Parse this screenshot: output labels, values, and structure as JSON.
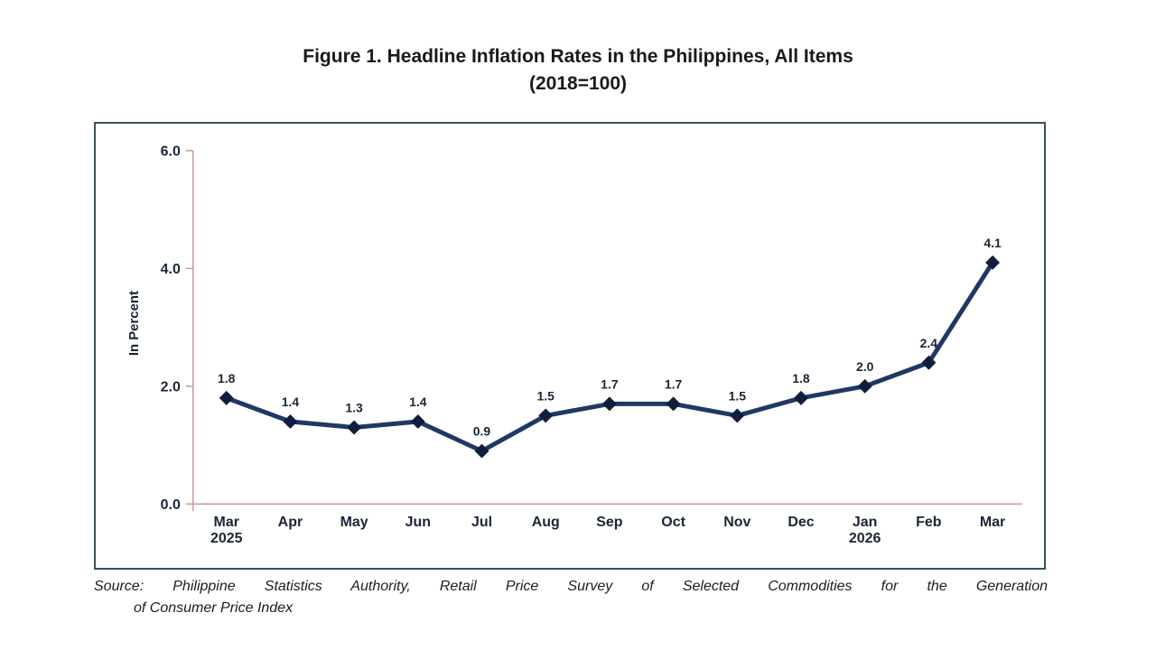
{
  "chart_data": {
    "type": "line",
    "title": "Figure 1. Headline Inflation Rates in the Philippines, All Items",
    "subtitle": "(2018=100)",
    "ylabel": "In Percent",
    "ylim": [
      0,
      6
    ],
    "yticks": [
      0,
      2,
      4,
      6
    ],
    "categories": [
      {
        "month": "Mar",
        "year": "2025"
      },
      {
        "month": "Apr"
      },
      {
        "month": "May"
      },
      {
        "month": "Jun"
      },
      {
        "month": "Jul"
      },
      {
        "month": "Aug"
      },
      {
        "month": "Sep"
      },
      {
        "month": "Oct"
      },
      {
        "month": "Nov"
      },
      {
        "month": "Dec"
      },
      {
        "month": "Jan",
        "year": "2026"
      },
      {
        "month": "Feb"
      },
      {
        "month": "Mar"
      }
    ],
    "values": [
      1.8,
      1.4,
      1.3,
      1.4,
      0.9,
      1.5,
      1.7,
      1.7,
      1.5,
      1.8,
      2.0,
      2.4,
      4.1
    ],
    "grid": false,
    "legend": "none",
    "marker": "diamond",
    "line_color": "#1f3864",
    "marker_color": "#111d3a",
    "axis_color": "#c49c9c",
    "frame_color": "#36525e",
    "label_color": "#1b2538"
  },
  "source": {
    "line1": "Source: Philippine Statistics Authority, Retail Price Survey of Selected Commodities for the Generation",
    "line2": "of Consumer Price Index"
  }
}
